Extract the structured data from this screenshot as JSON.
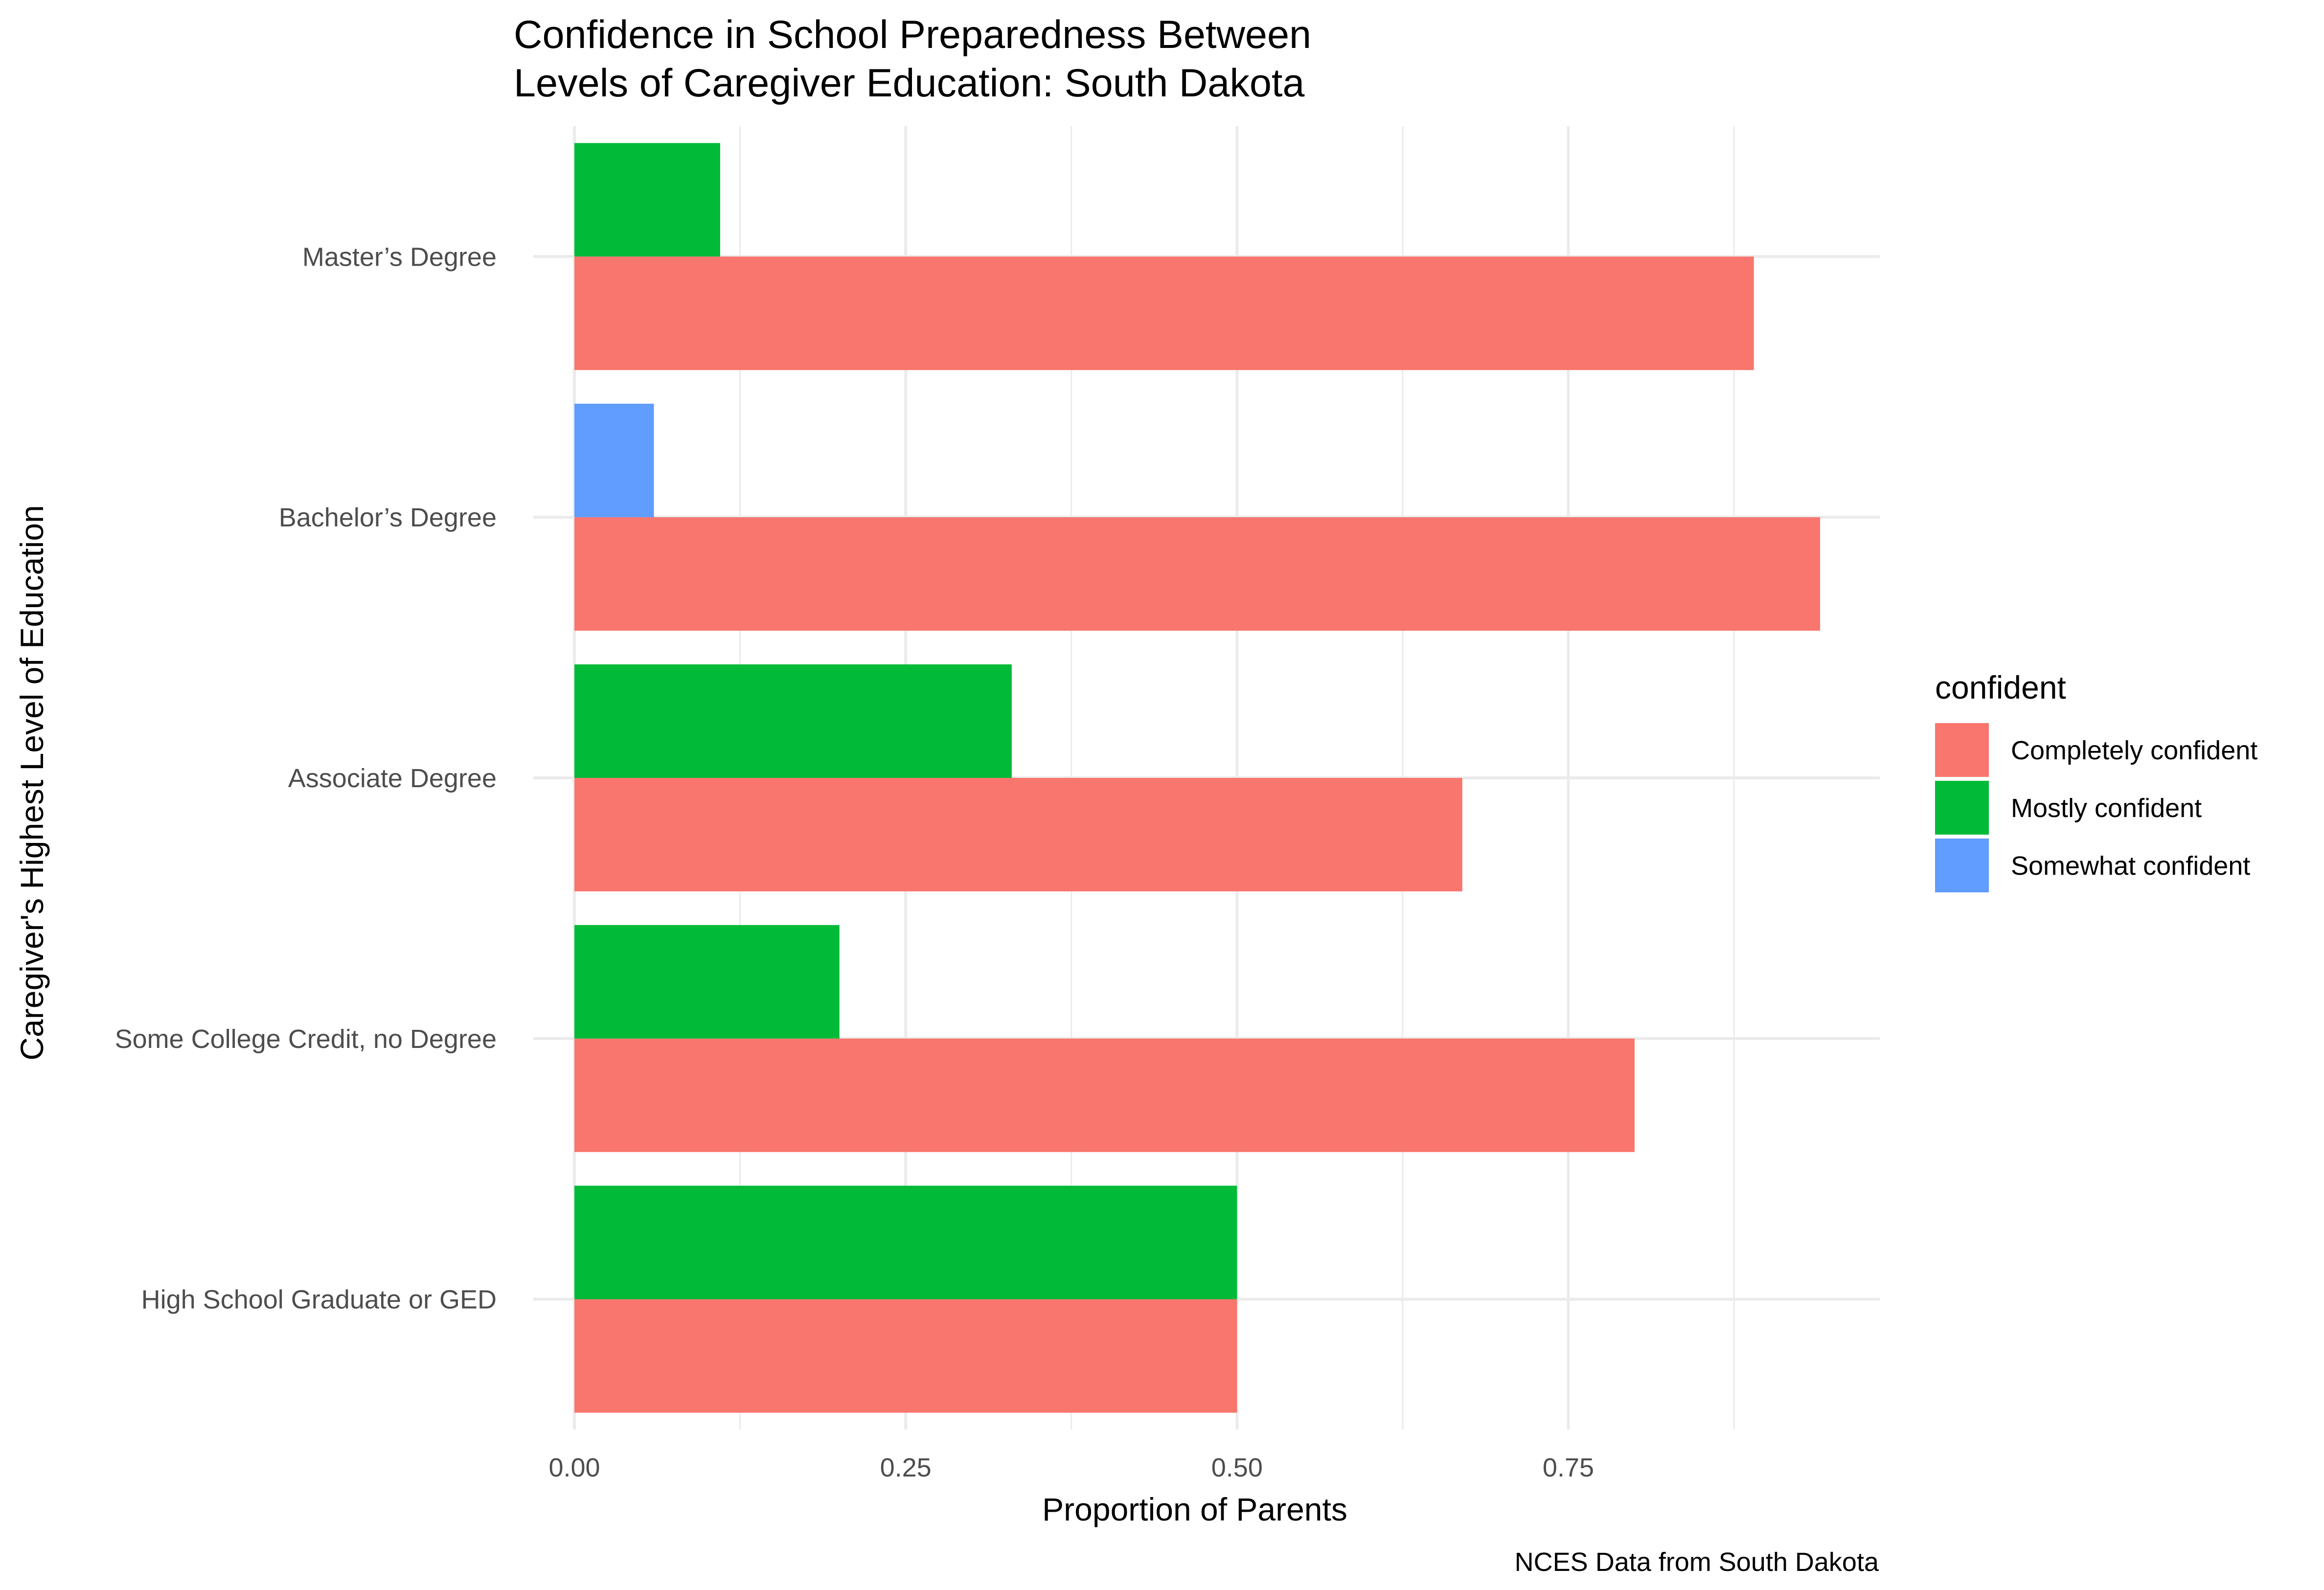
{
  "chart_data": {
    "type": "bar",
    "orientation": "horizontal",
    "title_lines": [
      "Confidence in School Preparedness Between",
      "Levels of Caregiver Education: South Dakota"
    ],
    "xlabel": "Proportion of Parents",
    "ylabel": "Caregiver's Highest Level of Education",
    "caption": "NCES Data from South Dakota",
    "xlim": [
      0,
      0.985
    ],
    "x_ticks": [
      0,
      0.25,
      0.5,
      0.75
    ],
    "x_tick_labels": [
      "0.00",
      "0.25",
      "0.50",
      "0.75"
    ],
    "categories": [
      "High School Graduate or GED",
      "Some College Credit, no Degree",
      "Associate Degree",
      "Bachelor’s Degree",
      "Master’s Degree"
    ],
    "legend": {
      "title": "confident",
      "position": "right",
      "entries": [
        {
          "label": "Completely confident",
          "color": "#F8766D"
        },
        {
          "label": "Mostly confident",
          "color": "#00BA38"
        },
        {
          "label": "Somewhat confident",
          "color": "#619CFF"
        }
      ]
    },
    "bars": [
      {
        "category": "High School Graduate or GED",
        "series": "Completely confident",
        "value": 0.5
      },
      {
        "category": "High School Graduate or GED",
        "series": "Mostly confident",
        "value": 0.5
      },
      {
        "category": "Some College Credit, no Degree",
        "series": "Completely confident",
        "value": 0.8
      },
      {
        "category": "Some College Credit, no Degree",
        "series": "Mostly confident",
        "value": 0.2
      },
      {
        "category": "Associate Degree",
        "series": "Completely confident",
        "value": 0.67
      },
      {
        "category": "Associate Degree",
        "series": "Mostly confident",
        "value": 0.33
      },
      {
        "category": "Bachelor’s Degree",
        "series": "Completely confident",
        "value": 0.94
      },
      {
        "category": "Bachelor’s Degree",
        "series": "Somewhat confident",
        "value": 0.06
      },
      {
        "category": "Master’s Degree",
        "series": "Completely confident",
        "value": 0.89
      },
      {
        "category": "Master’s Degree",
        "series": "Mostly confident",
        "value": 0.11
      }
    ],
    "grid": true
  }
}
